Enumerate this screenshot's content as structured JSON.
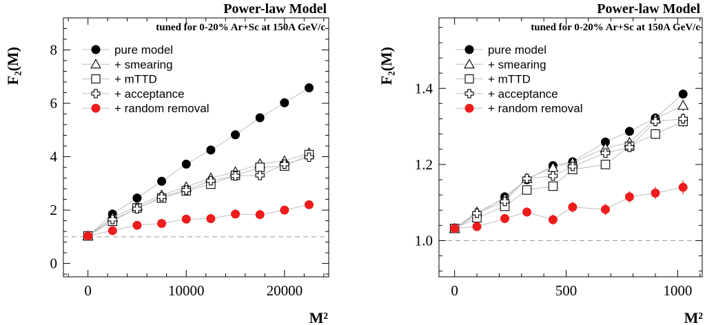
{
  "chart_data": [
    {
      "type": "scatter",
      "title": "Power-law Model",
      "subtitle": "tuned for 0-20% Ar+Sc at 150A GeV/c",
      "xlabel": "M²",
      "ylabel": "F₂(M)",
      "xlim": [
        -2500,
        24500
      ],
      "ylim": [
        -0.5,
        9.2
      ],
      "xticks": [
        0,
        10000,
        20000
      ],
      "xtick_labels": [
        "0",
        "10000",
        "20000"
      ],
      "yticks": [
        0,
        2,
        4,
        6,
        8
      ],
      "ytick_labels": [
        "0",
        "2",
        "4",
        "6",
        "8"
      ],
      "reference_line": 1.0,
      "legend_position": "top-left",
      "grid": false,
      "series": [
        {
          "name": "pure model",
          "marker": "filled-circle",
          "color": "#000000",
          "x": [
            0,
            2500,
            5000,
            7500,
            10000,
            12500,
            15000,
            17500,
            20000,
            22500
          ],
          "y": [
            1.03,
            1.85,
            2.45,
            3.08,
            3.72,
            4.25,
            4.82,
            5.46,
            6.02,
            6.58
          ]
        },
        {
          "name": "+ smearing",
          "marker": "open-triangle",
          "color": "#000000",
          "x": [
            0,
            2500,
            5000,
            7500,
            10000,
            12500,
            15000,
            17500,
            20000,
            22500
          ],
          "y": [
            1.03,
            1.72,
            2.15,
            2.56,
            2.87,
            3.2,
            3.43,
            3.73,
            3.84,
            4.14
          ]
        },
        {
          "name": "+ mTTD",
          "marker": "open-square",
          "color": "#000000",
          "x": [
            0,
            2500,
            5000,
            7500,
            10000,
            12500,
            15000,
            17500,
            20000,
            22500
          ],
          "y": [
            1.03,
            1.58,
            2.08,
            2.45,
            2.72,
            2.97,
            3.3,
            3.6,
            3.65,
            4.08
          ]
        },
        {
          "name": "+ acceptance",
          "marker": "open-cross",
          "color": "#000000",
          "x": [
            0,
            2500,
            5000,
            7500,
            10000,
            12500,
            15000,
            17500,
            20000,
            22500
          ],
          "y": [
            1.03,
            1.65,
            2.05,
            2.5,
            2.75,
            3.1,
            3.28,
            3.3,
            3.72,
            3.98
          ]
        },
        {
          "name": "+ random removal",
          "marker": "filled-circle",
          "color": "#ee1c1c",
          "x": [
            0,
            2500,
            5000,
            7500,
            10000,
            12500,
            15000,
            17500,
            20000,
            22500
          ],
          "y": [
            1.03,
            1.23,
            1.43,
            1.5,
            1.66,
            1.68,
            1.85,
            1.83,
            2.0,
            2.2
          ]
        }
      ]
    },
    {
      "type": "scatter",
      "title": "Power-law Model",
      "subtitle": "tuned for 0-20% Ar+Sc at 150A GeV/c",
      "xlabel": "M²",
      "ylabel": "F₂(M)",
      "xlim": [
        -70,
        1110
      ],
      "ylim": [
        0.905,
        1.585
      ],
      "xticks": [
        0,
        500,
        1000
      ],
      "xtick_labels": [
        "0",
        "500",
        "1000"
      ],
      "yticks": [
        1.0,
        1.2,
        1.4
      ],
      "ytick_labels": [
        "1.0",
        "1.2",
        "1.4"
      ],
      "reference_line": 1.0,
      "legend_position": "top-left",
      "grid": false,
      "series": [
        {
          "name": "pure model",
          "marker": "filled-circle",
          "color": "#000000",
          "x": [
            0,
            100,
            225,
            324,
            441,
            529,
            676,
            784,
            900,
            1024
          ],
          "y": [
            1.032,
            1.068,
            1.115,
            1.16,
            1.197,
            1.207,
            1.259,
            1.287,
            1.322,
            1.385
          ],
          "err": [
            0.006,
            0.006,
            0.007,
            0.008,
            0.008,
            0.009,
            0.01,
            0.01,
            0.011,
            0.012
          ]
        },
        {
          "name": "+ smearing",
          "marker": "open-triangle",
          "color": "#000000",
          "x": [
            0,
            100,
            225,
            324,
            441,
            529,
            676,
            784,
            900,
            1024
          ],
          "y": [
            1.032,
            1.075,
            1.11,
            1.163,
            1.192,
            1.205,
            1.243,
            1.258,
            1.32,
            1.355
          ],
          "err": [
            0.006,
            0.007,
            0.008,
            0.009,
            0.009,
            0.01,
            0.011,
            0.012,
            0.013,
            0.014
          ]
        },
        {
          "name": "+ mTTD",
          "marker": "open-square",
          "color": "#000000",
          "x": [
            0,
            100,
            225,
            324,
            441,
            529,
            676,
            784,
            900,
            1024
          ],
          "y": [
            1.032,
            1.06,
            1.09,
            1.133,
            1.143,
            1.187,
            1.2,
            1.248,
            1.28,
            1.313
          ],
          "err": [
            0.006,
            0.007,
            0.008,
            0.009,
            0.009,
            0.01,
            0.011,
            0.012,
            0.013,
            0.014
          ]
        },
        {
          "name": "+ acceptance",
          "marker": "open-cross",
          "color": "#000000",
          "x": [
            0,
            100,
            225,
            324,
            441,
            529,
            676,
            784,
            900,
            1024
          ],
          "y": [
            1.032,
            1.072,
            1.103,
            1.163,
            1.17,
            1.195,
            1.23,
            1.245,
            1.313,
            1.32
          ],
          "err": [
            0.006,
            0.007,
            0.008,
            0.009,
            0.009,
            0.01,
            0.011,
            0.012,
            0.013,
            0.014
          ]
        },
        {
          "name": "+ random removal",
          "marker": "filled-circle",
          "color": "#ee1c1c",
          "x": [
            0,
            100,
            225,
            324,
            441,
            529,
            676,
            784,
            900,
            1024
          ],
          "y": [
            1.032,
            1.037,
            1.058,
            1.075,
            1.055,
            1.088,
            1.082,
            1.115,
            1.125,
            1.14
          ],
          "err": [
            0.008,
            0.01,
            0.012,
            0.012,
            0.013,
            0.014,
            0.015,
            0.015,
            0.016,
            0.018
          ]
        }
      ]
    }
  ]
}
